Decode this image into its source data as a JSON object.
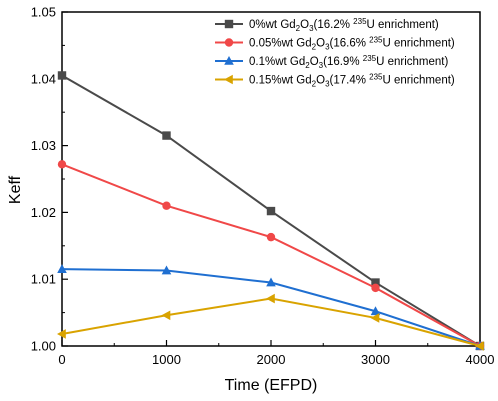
{
  "chart_data": {
    "type": "line",
    "title": "",
    "xlabel": "Time (EFPD)",
    "ylabel": "Keff",
    "x": [
      0,
      1000,
      2000,
      3000,
      4000
    ],
    "xlim": [
      0,
      4000
    ],
    "ylim": [
      1.0,
      1.05
    ],
    "xticks": [
      "0",
      "1000",
      "2000",
      "3000",
      "4000"
    ],
    "yticks": [
      "1.00",
      "1.01",
      "1.02",
      "1.03",
      "1.04",
      "1.05"
    ],
    "grid": false,
    "legend_position": "top-right",
    "series": [
      {
        "name": "0%wt Gd2O3(16.2% 235U enrichment)",
        "legend": {
          "prefix": "0%wt Gd",
          "sub1": "2",
          "mid": "O",
          "sub2": "3",
          "paren": "(16.2% ",
          "sup": "235",
          "suffix": "U enrichment)"
        },
        "color": "#4a4a4a",
        "marker": "square",
        "values": [
          1.0405,
          1.0315,
          1.0202,
          1.0095,
          1.0
        ]
      },
      {
        "name": "0.05%wt Gd2O3(16.6% 235U enrichment)",
        "legend": {
          "prefix": "0.05%wt Gd",
          "sub1": "2",
          "mid": "O",
          "sub2": "3",
          "paren": "(16.6% ",
          "sup": "235",
          "suffix": "U enrichment)"
        },
        "color": "#f04848",
        "marker": "circle",
        "values": [
          1.0272,
          1.021,
          1.0163,
          1.0087,
          1.0
        ]
      },
      {
        "name": "0.1%wt Gd2O3(16.9% 235U enrichment)",
        "legend": {
          "prefix": "0.1%wt Gd",
          "sub1": "2",
          "mid": "O",
          "sub2": "3",
          "paren": "(16.9% ",
          "sup": "235",
          "suffix": "U enrichment)"
        },
        "color": "#1f6fd1",
        "marker": "triangle-up",
        "values": [
          1.0115,
          1.0113,
          1.0095,
          1.0052,
          1.0
        ]
      },
      {
        "name": "0.15%wt Gd2O3(17.4% 235U enrichment)",
        "legend": {
          "prefix": "0.15%wt Gd",
          "sub1": "2",
          "mid": "O",
          "sub2": "3",
          "paren": "(17.4% ",
          "sup": "235",
          "suffix": "U enrichment)"
        },
        "color": "#d9a300",
        "marker": "triangle-left",
        "values": [
          1.0018,
          1.0046,
          1.0071,
          1.0042,
          1.0
        ]
      }
    ]
  }
}
